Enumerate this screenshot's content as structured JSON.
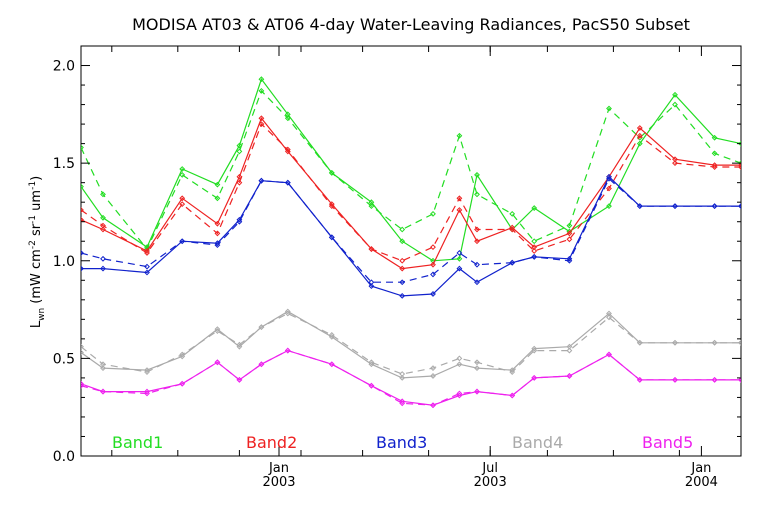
{
  "chart_data": {
    "type": "line",
    "title": "MODISA AT03 & AT06 4-day Water-Leaving Radiances, PacS50 Subset",
    "ylabel": "L",
    "ylabel_sub": "wn",
    "ylabel_units": " (mW cm",
    "ylabel_sup1": "-2",
    "ylabel_mid": " sr",
    "ylabel_sup2": "-1",
    "ylabel_mid2": " um",
    "ylabel_sup3": "-1",
    "ylabel_end": ")",
    "ylim": [
      0.0,
      2.1
    ],
    "yticks": [
      0.0,
      0.5,
      1.0,
      1.5,
      2.0
    ],
    "ytick_labels": [
      "0.0",
      "0.5",
      "1.0",
      "1.5",
      "2.0"
    ],
    "xlim": [
      0,
      15
    ],
    "x": [
      0,
      0.5,
      1.5,
      2.3,
      3.1,
      3.6,
      4.1,
      4.7,
      5.7,
      6.6,
      7.3,
      8.0,
      8.6,
      9.0,
      9.8,
      10.3,
      11.1,
      12.0,
      12.7,
      13.5,
      14.4,
      15.0
    ],
    "xticks_minor": [
      0.7,
      2.2,
      3.6,
      5.0,
      6.4,
      7.9,
      9.3,
      10.6,
      12.1,
      13.6
    ],
    "xticks_major": [
      {
        "x": 4.5,
        "label": "Jan",
        "year": "2003"
      },
      {
        "x": 9.3,
        "label": "Jul",
        "year": "2003"
      },
      {
        "x": 14.1,
        "label": "Jan",
        "year": "2004"
      }
    ],
    "legend_placement": "bottom",
    "series": [
      {
        "name": "Band1",
        "color": "#22dd22",
        "style": "solid",
        "values": [
          1.38,
          1.22,
          1.07,
          1.47,
          1.39,
          1.59,
          1.93,
          1.75,
          1.45,
          1.3,
          1.1,
          1.0,
          1.01,
          1.44,
          1.16,
          1.27,
          1.15,
          1.28,
          1.6,
          1.85,
          1.63,
          1.6
        ]
      },
      {
        "name": "Band1",
        "color": "#22dd22",
        "style": "dashed",
        "values": [
          1.58,
          1.34,
          1.06,
          1.44,
          1.32,
          1.56,
          1.87,
          1.73,
          1.45,
          1.28,
          1.16,
          1.24,
          1.64,
          1.34,
          1.24,
          1.1,
          1.18,
          1.78,
          1.63,
          1.8,
          1.55,
          1.5
        ]
      },
      {
        "name": "Band2",
        "color": "#ee2222",
        "style": "solid",
        "values": [
          1.21,
          1.16,
          1.05,
          1.32,
          1.19,
          1.43,
          1.73,
          1.56,
          1.29,
          1.06,
          0.96,
          0.98,
          1.26,
          1.1,
          1.17,
          1.07,
          1.14,
          1.43,
          1.68,
          1.52,
          1.49,
          1.49
        ]
      },
      {
        "name": "Band2",
        "color": "#ee2222",
        "style": "dashed",
        "values": [
          1.26,
          1.18,
          1.04,
          1.29,
          1.14,
          1.4,
          1.7,
          1.57,
          1.28,
          1.06,
          1.0,
          1.07,
          1.32,
          1.16,
          1.16,
          1.05,
          1.11,
          1.37,
          1.64,
          1.5,
          1.48,
          1.48
        ]
      },
      {
        "name": "Band3",
        "color": "#1122cc",
        "style": "solid",
        "values": [
          0.96,
          0.96,
          0.94,
          1.1,
          1.09,
          1.21,
          1.41,
          1.4,
          1.12,
          0.87,
          0.82,
          0.83,
          0.96,
          0.89,
          0.99,
          1.02,
          1.01,
          1.43,
          1.28,
          1.28,
          1.28,
          1.28
        ]
      },
      {
        "name": "Band3",
        "color": "#1122cc",
        "style": "dashed",
        "values": [
          1.04,
          1.01,
          0.97,
          1.1,
          1.08,
          1.2,
          1.41,
          1.4,
          1.12,
          0.89,
          0.89,
          0.93,
          1.04,
          0.98,
          0.99,
          1.02,
          1.0,
          1.42,
          1.28,
          1.28,
          1.28,
          1.28
        ]
      },
      {
        "name": "Band4",
        "color": "#aaaaaa",
        "style": "solid",
        "values": [
          0.53,
          0.45,
          0.44,
          0.51,
          0.65,
          0.56,
          0.66,
          0.74,
          0.61,
          0.47,
          0.4,
          0.41,
          0.47,
          0.45,
          0.44,
          0.55,
          0.56,
          0.73,
          0.58,
          0.58,
          0.58,
          0.58
        ]
      },
      {
        "name": "Band4",
        "color": "#aaaaaa",
        "style": "dashed",
        "values": [
          0.56,
          0.47,
          0.43,
          0.52,
          0.64,
          0.57,
          0.66,
          0.73,
          0.62,
          0.48,
          0.42,
          0.45,
          0.5,
          0.48,
          0.43,
          0.54,
          0.54,
          0.71,
          0.58,
          0.58,
          0.58,
          0.58
        ]
      },
      {
        "name": "Band5",
        "color": "#ee22ee",
        "style": "solid",
        "values": [
          0.37,
          0.33,
          0.33,
          0.37,
          0.48,
          0.39,
          0.47,
          0.54,
          0.47,
          0.36,
          0.28,
          0.26,
          0.31,
          0.33,
          0.31,
          0.4,
          0.41,
          0.52,
          0.39,
          0.39,
          0.39,
          0.39
        ]
      },
      {
        "name": "Band5",
        "color": "#ee22ee",
        "style": "dashed",
        "values": [
          0.36,
          0.33,
          0.32,
          0.37,
          0.48,
          0.39,
          0.47,
          0.54,
          0.47,
          0.36,
          0.27,
          0.26,
          0.32,
          0.33,
          0.31,
          0.4,
          0.41,
          0.52,
          0.39,
          0.39,
          0.39,
          0.39
        ]
      }
    ],
    "legend": [
      {
        "label": "Band1",
        "color": "#22dd22"
      },
      {
        "label": "Band2",
        "color": "#ee2222"
      },
      {
        "label": "Band3",
        "color": "#1122cc"
      },
      {
        "label": "Band4",
        "color": "#aaaaaa"
      },
      {
        "label": "Band5",
        "color": "#ee22ee"
      }
    ]
  }
}
